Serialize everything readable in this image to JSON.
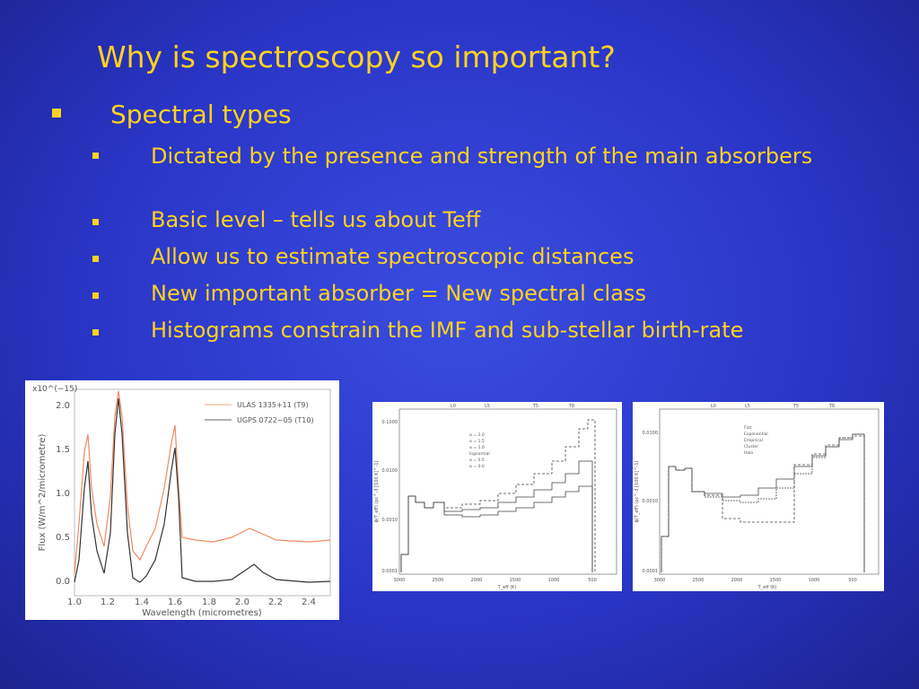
{
  "slide": {
    "title": "Why is spectroscopy so important?",
    "bullet": "Spectral types",
    "sub_bullets": [
      "Dictated by the presence and strength of the main absorbers",
      "Basic level – tells us about Teff",
      "Allow us to estimate spectroscopic distances",
      "New important absorber = New spectral class",
      "Histograms constrain the IMF and sub-stellar birth-rate"
    ]
  },
  "figures": [
    {
      "scale": "x10^(−15)",
      "y_label": "Flux (W/m^2/micrometre)",
      "x_label": "Wavelength (micrometres)",
      "yticks": [
        "2.0",
        "1.5",
        "1.0",
        "0.5",
        "0.0"
      ],
      "xticks": [
        "1.0",
        "1.2",
        "1.4",
        "1.6",
        "1.8",
        "2.0",
        "2.2",
        "2.4"
      ],
      "legend": [
        "ULAS 1335+11 (T9)",
        "UGPS 0722−05 (T10)"
      ]
    },
    {
      "x_label": "T_eff (K)",
      "y_label": "ϕ(T_eff) (pc^-3 [100 K]^-1)",
      "yticks": [
        "0.1000",
        "0.0100",
        "0.0010",
        "0.0001"
      ],
      "xticks": [
        "3000",
        "2500",
        "2000",
        "1500",
        "1000",
        "500"
      ],
      "top_ticks": [
        "L0",
        "L5",
        "T5",
        "T8"
      ],
      "legend": [
        "α = 2.0",
        "α = 1.5",
        "α = 1.0",
        "lognormal",
        "α = 0.5",
        "α = 0.0"
      ]
    },
    {
      "x_label": "T_eff (K)",
      "y_label": "ϕ(T_eff) (pc^-3 [100 K]^-1)",
      "yticks": [
        "0.0100",
        "0.0010",
        "0.0001"
      ],
      "xticks": [
        "3000",
        "2500",
        "2000",
        "1500",
        "1000",
        "500"
      ],
      "top_ticks": [
        "L0",
        "L5",
        "T5",
        "T8"
      ],
      "legend": [
        "Flat",
        "Exponential",
        "Empirical",
        "Cluster",
        "Halo"
      ]
    }
  ]
}
